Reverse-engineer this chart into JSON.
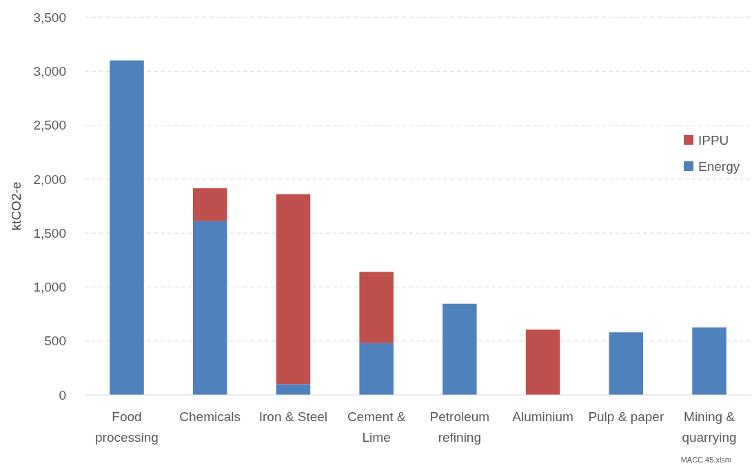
{
  "chart_data": {
    "type": "bar",
    "stacked": true,
    "ylabel": "ktCO2-e",
    "categories": [
      "Food processing",
      "Chemicals",
      "Iron & Steel",
      "Cement & Lime",
      "Petroleum refining",
      "Aluminium",
      "Pulp & paper",
      "Mining & quarrying"
    ],
    "series": [
      {
        "name": "Energy",
        "color": "#4f81bd",
        "values": [
          3100,
          1610,
          100,
          480,
          845,
          0,
          580,
          625
        ]
      },
      {
        "name": "IPPU",
        "color": "#c0504d",
        "values": [
          0,
          305,
          1760,
          660,
          0,
          605,
          0,
          0
        ]
      }
    ],
    "ylim": [
      0,
      3500
    ],
    "yticks": [
      {
        "value": 0,
        "label": "0"
      },
      {
        "value": 500,
        "label": "500"
      },
      {
        "value": 1000,
        "label": "1,000"
      },
      {
        "value": 1500,
        "label": "1,500"
      },
      {
        "value": 2000,
        "label": "2,000"
      },
      {
        "value": 2500,
        "label": "2,500"
      },
      {
        "value": 3000,
        "label": "3,000"
      },
      {
        "value": 3500,
        "label": "3,500"
      }
    ],
    "grid": "y",
    "legend": "right",
    "annotations": [
      "MACC 45.xlsm"
    ]
  }
}
